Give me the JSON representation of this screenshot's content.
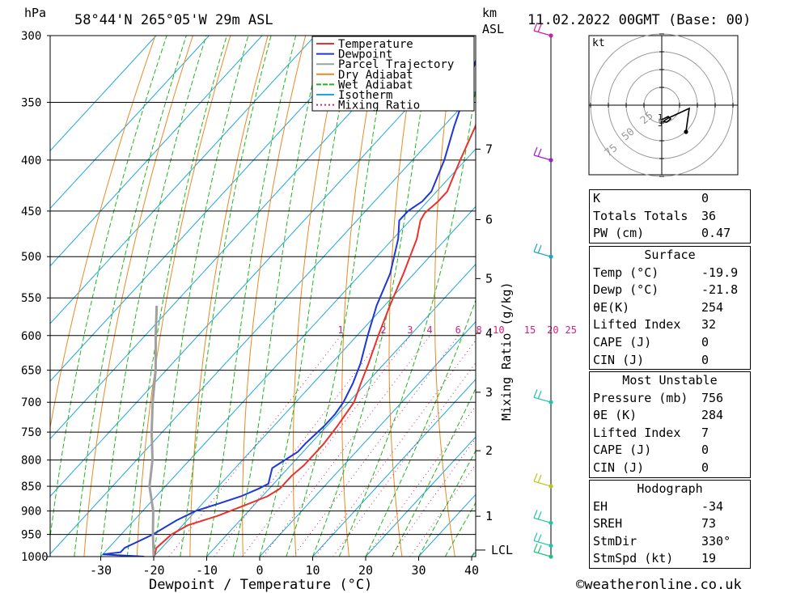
{
  "header": {
    "hpa_label": "hPa",
    "location": "58°44'N  265°05'W  29m  ASL",
    "km_label": "km",
    "asl_label": "ASL",
    "datetime": "11.02.2022  00GMT  (Base: 00)"
  },
  "chart_data": {
    "type": "skew-t",
    "xlabel": "Dewpoint / Temperature (°C)",
    "ylabel_right": "Mixing Ratio (g/kg)",
    "x_ticks": [
      -30,
      -20,
      -10,
      0,
      10,
      20,
      30,
      40
    ],
    "pressure_ticks": [
      300,
      350,
      400,
      450,
      500,
      550,
      600,
      650,
      700,
      750,
      800,
      850,
      900,
      950,
      1000
    ],
    "km_ticks": [
      {
        "km": "1",
        "p": 911
      },
      {
        "km": "2",
        "p": 783
      },
      {
        "km": "3",
        "p": 684
      },
      {
        "km": "4",
        "p": 597
      },
      {
        "km": "5",
        "p": 526
      },
      {
        "km": "6",
        "p": 459
      },
      {
        "km": "7",
        "p": 390
      }
    ],
    "lcl": {
      "label": "LCL",
      "p": 985
    },
    "mixing_ratio_labels": [
      "1",
      "2",
      "3",
      "4",
      "6",
      "8",
      "10",
      "15",
      "20",
      "25"
    ],
    "legend": [
      {
        "name": "Temperature",
        "color": "#e8332c"
      },
      {
        "name": "Dewpoint",
        "color": "#1c38d6"
      },
      {
        "name": "Parcel Trajectory",
        "color": "#a0a0a0"
      },
      {
        "name": "Dry Adiabat",
        "color": "#e88a24"
      },
      {
        "name": "Wet Adiabat",
        "color": "#1fb51f"
      },
      {
        "name": "Isotherm",
        "color": "#1fa6e0"
      },
      {
        "name": "Mixing Ratio",
        "color": "#d4217e"
      }
    ],
    "series": [
      {
        "name": "Temperature",
        "color": "#e8332c",
        "points": [
          [
            1000,
            -19.9
          ],
          [
            980,
            -21
          ],
          [
            950,
            -20.5
          ],
          [
            930,
            -19
          ],
          [
            910,
            -15
          ],
          [
            890,
            -12
          ],
          [
            870,
            -9
          ],
          [
            855,
            -8
          ],
          [
            830,
            -8
          ],
          [
            810,
            -7.5
          ],
          [
            790,
            -7.5
          ],
          [
            770,
            -7.5
          ],
          [
            740,
            -8
          ],
          [
            720,
            -8.5
          ],
          [
            700,
            -9
          ],
          [
            670,
            -11
          ],
          [
            640,
            -13
          ],
          [
            600,
            -16
          ],
          [
            560,
            -19
          ],
          [
            520,
            -22
          ],
          [
            480,
            -25.5
          ],
          [
            460,
            -28
          ],
          [
            452,
            -28.5
          ],
          [
            440,
            -28
          ],
          [
            430,
            -28
          ],
          [
            415,
            -29.5
          ],
          [
            400,
            -31
          ],
          [
            370,
            -34
          ],
          [
            340,
            -38
          ],
          [
            320,
            -41
          ],
          [
            300,
            -44
          ]
        ]
      },
      {
        "name": "Dewpoint",
        "color": "#1c38d6",
        "points": [
          [
            1000,
            -21.8
          ],
          [
            995,
            -30
          ],
          [
            990,
            -27
          ],
          [
            980,
            -27
          ],
          [
            950,
            -24
          ],
          [
            920,
            -22
          ],
          [
            900,
            -20
          ],
          [
            885,
            -17
          ],
          [
            870,
            -14
          ],
          [
            855,
            -12
          ],
          [
            845,
            -11
          ],
          [
            830,
            -12
          ],
          [
            815,
            -13
          ],
          [
            800,
            -12
          ],
          [
            785,
            -11
          ],
          [
            770,
            -11
          ],
          [
            740,
            -10.5
          ],
          [
            720,
            -10.5
          ],
          [
            700,
            -11
          ],
          [
            670,
            -12.5
          ],
          [
            640,
            -14.5
          ],
          [
            600,
            -18
          ],
          [
            560,
            -21.5
          ],
          [
            520,
            -24.5
          ],
          [
            480,
            -29
          ],
          [
            460,
            -32
          ],
          [
            450,
            -32
          ],
          [
            440,
            -31
          ],
          [
            430,
            -31
          ],
          [
            400,
            -34
          ],
          [
            370,
            -38
          ],
          [
            340,
            -42
          ],
          [
            320,
            -45
          ],
          [
            300,
            -48
          ]
        ]
      },
      {
        "name": "Parcel Trajectory",
        "color": "#a0a0a0",
        "points": [
          [
            1000,
            -20
          ],
          [
            950,
            -24
          ],
          [
            900,
            -28
          ],
          [
            850,
            -33
          ],
          [
            800,
            -37
          ],
          [
            750,
            -42
          ],
          [
            700,
            -47
          ],
          [
            650,
            -52
          ],
          [
            600,
            -58
          ],
          [
            560,
            -63
          ]
        ]
      }
    ],
    "wind_barbs": [
      {
        "p": 300,
        "color": "#cc1fa8"
      },
      {
        "p": 400,
        "color": "#9b1fcc"
      },
      {
        "p": 500,
        "color": "#1fa6c4"
      },
      {
        "p": 700,
        "color": "#1fc4a6"
      },
      {
        "p": 850,
        "color": "#b8c41f"
      },
      {
        "p": 925,
        "color": "#1fc4a6"
      },
      {
        "p": 975,
        "color": "#1fc4a6"
      },
      {
        "p": 1000,
        "color": "#1fc47e"
      }
    ]
  },
  "hodograph": {
    "unit": "kt",
    "ring_labels": [
      "25",
      "50",
      "75"
    ],
    "marker_labels": [
      "1",
      "3"
    ]
  },
  "indices": {
    "rows": [
      {
        "label": "K",
        "value": "0"
      },
      {
        "label": "Totals Totals",
        "value": "36"
      },
      {
        "label": "PW (cm)",
        "value": "0.47"
      }
    ],
    "surface": {
      "title": "Surface",
      "rows": [
        {
          "label": "Temp (°C)",
          "value": "-19.9"
        },
        {
          "label": "Dewp (°C)",
          "value": "-21.8"
        },
        {
          "label": "θE(K)",
          "value": "254"
        },
        {
          "label": "Lifted Index",
          "value": "32"
        },
        {
          "label": "CAPE (J)",
          "value": "0"
        },
        {
          "label": "CIN (J)",
          "value": "0"
        }
      ]
    },
    "most_unstable": {
      "title": "Most Unstable",
      "rows": [
        {
          "label": "Pressure (mb)",
          "value": "756"
        },
        {
          "label": "θE (K)",
          "value": "284"
        },
        {
          "label": "Lifted Index",
          "value": "7"
        },
        {
          "label": "CAPE (J)",
          "value": "0"
        },
        {
          "label": "CIN (J)",
          "value": "0"
        }
      ]
    },
    "hodograph_box": {
      "title": "Hodograph",
      "rows": [
        {
          "label": "EH",
          "value": "-34"
        },
        {
          "label": "SREH",
          "value": "73"
        },
        {
          "label": "StmDir",
          "value": "330°"
        },
        {
          "label": "StmSpd (kt)",
          "value": "19"
        }
      ]
    }
  },
  "footer": {
    "copyright": "©weatheronline.co.uk"
  }
}
